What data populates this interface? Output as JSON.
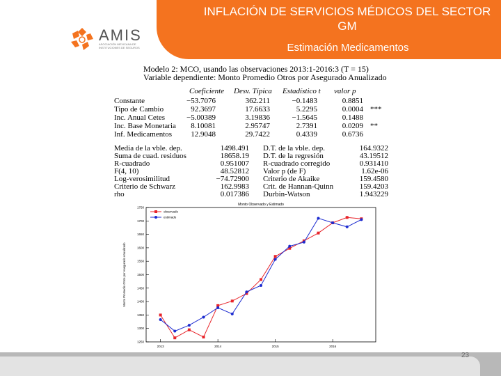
{
  "slide": {
    "title": "INFLACIÓN DE SERVICIOS MÉDICOS DEL SECTOR GM",
    "subtitle": "Estimación Medicamentos",
    "page_number": "23",
    "accent_color": "#f4731f"
  },
  "logo": {
    "word": "AMIS",
    "tagline": "ASOCIACIÓN MEXICANA DE INSTITUCIONES DE SEGUROS"
  },
  "model": {
    "line1": "Modelo 2: MCO, usando las observaciones 2013:1-2016:3 (T = 15)",
    "line2": "Variable dependiente: Monto Promedio Otros por Asegurado Anualizado"
  },
  "coefficients": {
    "headers": [
      "Coeficiente",
      "Desv. Típica",
      "Estadístico t",
      "valor p"
    ],
    "rows": [
      {
        "name": "Constante",
        "coef": "−53.7076",
        "se": "362.211",
        "t": "−0.1483",
        "p": "0.8851",
        "sig": ""
      },
      {
        "name": "Tipo de Cambio",
        "coef": "92.3697",
        "se": "17.6633",
        "t": "5.2295",
        "p": "0.0004",
        "sig": "***"
      },
      {
        "name": "Inc. Anual Cetes",
        "coef": "−5.00389",
        "se": "3.19836",
        "t": "−1.5645",
        "p": "0.1488",
        "sig": ""
      },
      {
        "name": "Inc. Base Monetaria",
        "coef": "8.10081",
        "se": "2.95747",
        "t": "2.7391",
        "p": "0.0209",
        "sig": "**"
      },
      {
        "name": "Inf. Medicamentos",
        "coef": "12.9048",
        "se": "29.7422",
        "t": "0.4339",
        "p": "0.6736",
        "sig": ""
      }
    ]
  },
  "stats": [
    {
      "l1": "Media de la vble. dep.",
      "v1": "1498.491",
      "l2": "D.T. de la vble. dep.",
      "v2": "164.9322"
    },
    {
      "l1": "Suma de cuad. residuos",
      "v1": "18658.19",
      "l2": "D.T. de la regresión",
      "v2": "43.19512"
    },
    {
      "l1": "R-cuadrado",
      "v1": "0.951007",
      "l2": "R-cuadrado corregido",
      "v2": "0.931410"
    },
    {
      "l1": "F(4, 10)",
      "v1": "48.52812",
      "l2": "Valor p (de F)",
      "v2": "1.62e-06"
    },
    {
      "l1": "Log-verosimilitud",
      "v1": "−74.72900",
      "l2": "Criterio de Akaike",
      "v2": "159.4580"
    },
    {
      "l1": "Criterio de Schwarz",
      "v1": "162.9983",
      "l2": "Crit. de Hannan-Quinn",
      "v2": "159.4203"
    },
    {
      "l1": "rho",
      "v1": "0.017386",
      "l2": "Durbin-Watson",
      "v2": "1.943229"
    }
  ],
  "chart_data": {
    "type": "line",
    "title": "Monto Observado y Estimado",
    "ylabel": "Monto Promedio Otros por Asegurado Anualizado",
    "xlabel": "",
    "x_ticks": [
      "2013",
      "2014",
      "2015",
      "2016"
    ],
    "y_ticks": [
      1250,
      1300,
      1350,
      1400,
      1450,
      1500,
      1550,
      1600,
      1650,
      1700,
      1750
    ],
    "ylim": [
      1250,
      1750
    ],
    "xlim": [
      2012.75,
      2016.75
    ],
    "grid": false,
    "legend_position": "top-left",
    "series": [
      {
        "name": "observado",
        "color": "#e8242a",
        "marker": "square",
        "x": [
          2013.0,
          2013.25,
          2013.5,
          2013.75,
          2014.0,
          2014.25,
          2014.5,
          2014.75,
          2015.0,
          2015.25,
          2015.5,
          2015.75,
          2016.0,
          2016.25,
          2016.5
        ],
        "values": [
          1350,
          1265,
          1295,
          1268,
          1385,
          1402,
          1430,
          1482,
          1568,
          1598,
          1626,
          1655,
          1693,
          1713,
          1708
        ]
      },
      {
        "name": "estimado",
        "color": "#1c2bd0",
        "marker": "circle",
        "x": [
          2013.0,
          2013.25,
          2013.5,
          2013.75,
          2014.0,
          2014.25,
          2014.5,
          2014.75,
          2015.0,
          2015.25,
          2015.5,
          2015.75,
          2016.0,
          2016.25,
          2016.5
        ],
        "values": [
          1333,
          1290,
          1312,
          1342,
          1377,
          1354,
          1436,
          1460,
          1557,
          1606,
          1621,
          1710,
          1693,
          1678,
          1705
        ]
      }
    ]
  }
}
